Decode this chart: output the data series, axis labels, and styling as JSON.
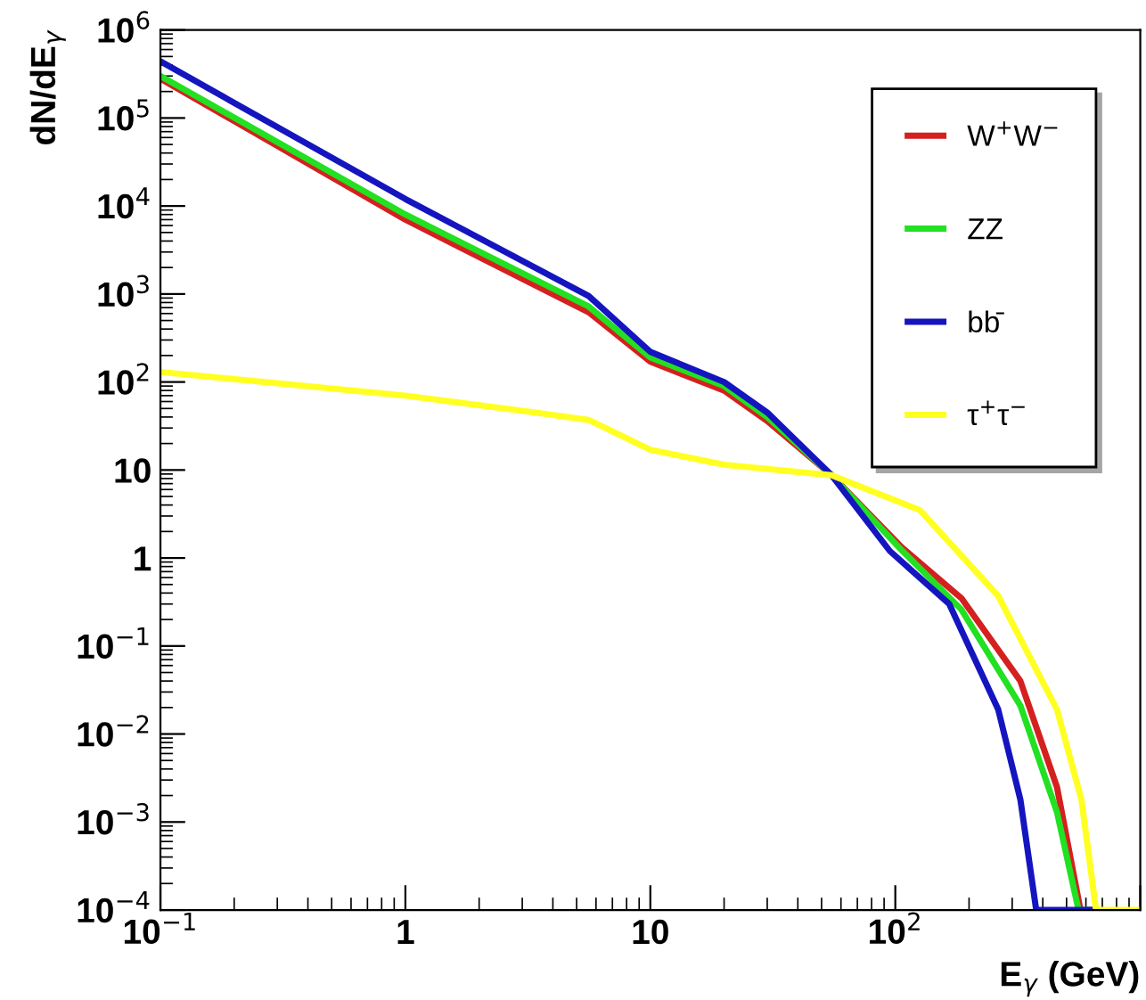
{
  "chart_data": {
    "type": "line",
    "xlabel": "E$_{γ}$ (GeV)",
    "ylabel": "dN/dE$_{γ}$",
    "log": "xy",
    "grid": false,
    "legend": "top right",
    "xlim": [
      0.1,
      1000
    ],
    "xticks": [
      {
        "value": 0.1,
        "label": "10$^{−1}$"
      },
      1,
      10,
      {
        "value": 100,
        "label": "10$^{2}$"
      },
      {
        "value": 1000,
        "label": null
      }
    ],
    "ylim": [
      0.0001,
      1000000
    ],
    "yticks": [
      {
        "value": 0.0001,
        "label": "10$^{−4}$"
      },
      {
        "value": 0.001,
        "label": "10$^{−3}$"
      },
      {
        "value": 0.01,
        "label": "10$^{−2}$"
      },
      {
        "value": 0.1,
        "label": "10$^{−1}$"
      },
      1,
      10,
      {
        "value": 100,
        "label": "10$^{2}$"
      },
      {
        "value": 1000,
        "label": "10$^{3}$"
      },
      {
        "value": 10000,
        "label": "10$^{4}$"
      },
      {
        "value": 100000,
        "label": "10$^{5}$"
      },
      {
        "value": 1000000,
        "label": "10$^{6}$"
      }
    ],
    "series": [
      {
        "name": "W$^{+}$W$^{−}$",
        "color": "#d42020",
        "x": [
          0.1,
          1,
          5.6,
          10,
          20,
          30,
          55,
          107,
          186,
          324,
          457,
          570,
          620
        ],
        "values": [
          280000,
          7000,
          620,
          170,
          80,
          36,
          8.7,
          1.3,
          0.35,
          0.04,
          0.0025,
          0.0001,
          0.0001
        ]
      },
      {
        "name": "ZZ",
        "color": "#22e022",
        "x": [
          0.1,
          1,
          5.6,
          10,
          20,
          30,
          55,
          107,
          186,
          324,
          457,
          560,
          610
        ],
        "values": [
          300000,
          8000,
          720,
          190,
          90,
          40,
          8.7,
          1.2,
          0.26,
          0.021,
          0.0013,
          0.0001,
          0.0001
        ]
      },
      {
        "name": "bb̄",
        "color": "#1515c0",
        "x": [
          0.1,
          1,
          5.6,
          10,
          20,
          30,
          55,
          95,
          166,
          263,
          324,
          376,
          640
        ],
        "values": [
          440000,
          12000,
          950,
          220,
          100,
          45,
          8.7,
          1.2,
          0.3,
          0.019,
          0.0018,
          0.0001,
          0.0001
        ]
      },
      {
        "name": "τ$^{+}$τ$^{−}$",
        "color": "#ffff22",
        "x": [
          0.1,
          1,
          3.4,
          5.6,
          10,
          20,
          55,
          126,
          263,
          457,
          575,
          660,
          1000
        ],
        "values": [
          130,
          70,
          45,
          37,
          17,
          11.5,
          8.7,
          3.5,
          0.37,
          0.019,
          0.0018,
          0.0001,
          0.0001
        ]
      }
    ]
  }
}
